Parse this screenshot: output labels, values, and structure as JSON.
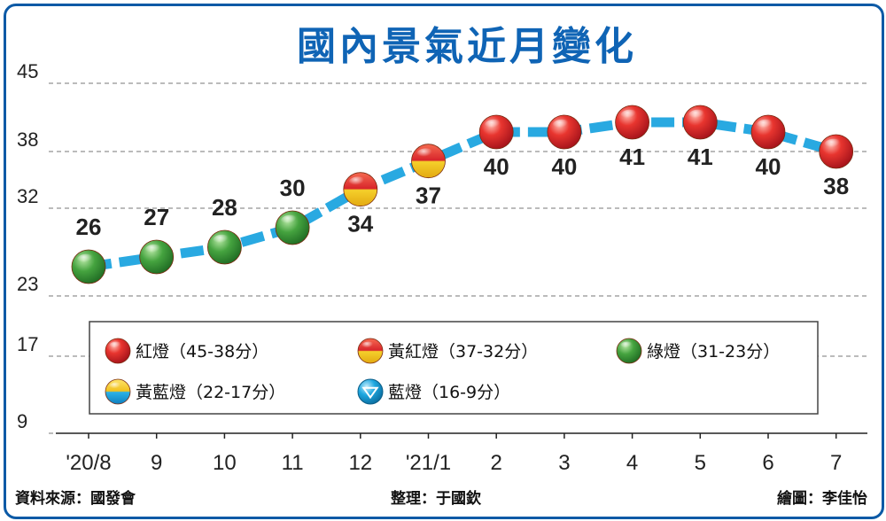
{
  "chart_data": {
    "type": "line",
    "title": "國內景氣近月變化",
    "categories": [
      "'20/8",
      "9",
      "10",
      "11",
      "12",
      "'21/1",
      "2",
      "3",
      "4",
      "5",
      "6",
      "7"
    ],
    "values": [
      26,
      27,
      28,
      30,
      34,
      37,
      40,
      40,
      41,
      41,
      40,
      38
    ],
    "value_labels": [
      "26",
      "27",
      "28",
      "30",
      "34",
      "37",
      "40",
      "40",
      "41",
      "41",
      "40",
      "38"
    ],
    "light_types": [
      "green",
      "green",
      "green",
      "green",
      "yellow-red",
      "yellow-red",
      "red",
      "red",
      "red",
      "red",
      "red",
      "red"
    ],
    "y_ticks": [
      45,
      38,
      32,
      23,
      17,
      9
    ],
    "y_tick_labels": [
      "45",
      "38",
      "32",
      "23",
      "17",
      "9"
    ],
    "ylim": [
      9,
      45
    ],
    "grid": "dashed horizontal",
    "line_color": "#29a9e1",
    "legend": {
      "position": "inside-bottom",
      "items": [
        {
          "type": "red",
          "label": "紅燈（45-38分）"
        },
        {
          "type": "yellow-red",
          "label": "黃紅燈（37-32分）"
        },
        {
          "type": "green",
          "label": "綠燈（31-23分）"
        },
        {
          "type": "yellow-blue",
          "label": "黃藍燈（22-17分）"
        },
        {
          "type": "blue",
          "label": "藍燈（16-9分）"
        }
      ]
    },
    "light_colors": {
      "red": "#d9262b",
      "yellow": "#f2c21b",
      "green": "#3f9a3b",
      "blue": "#1aa3dd"
    }
  },
  "footer": {
    "source": "資料來源：國發會",
    "compiled": "整理：于國欽",
    "drawn": "繪圖：李佳怡"
  }
}
